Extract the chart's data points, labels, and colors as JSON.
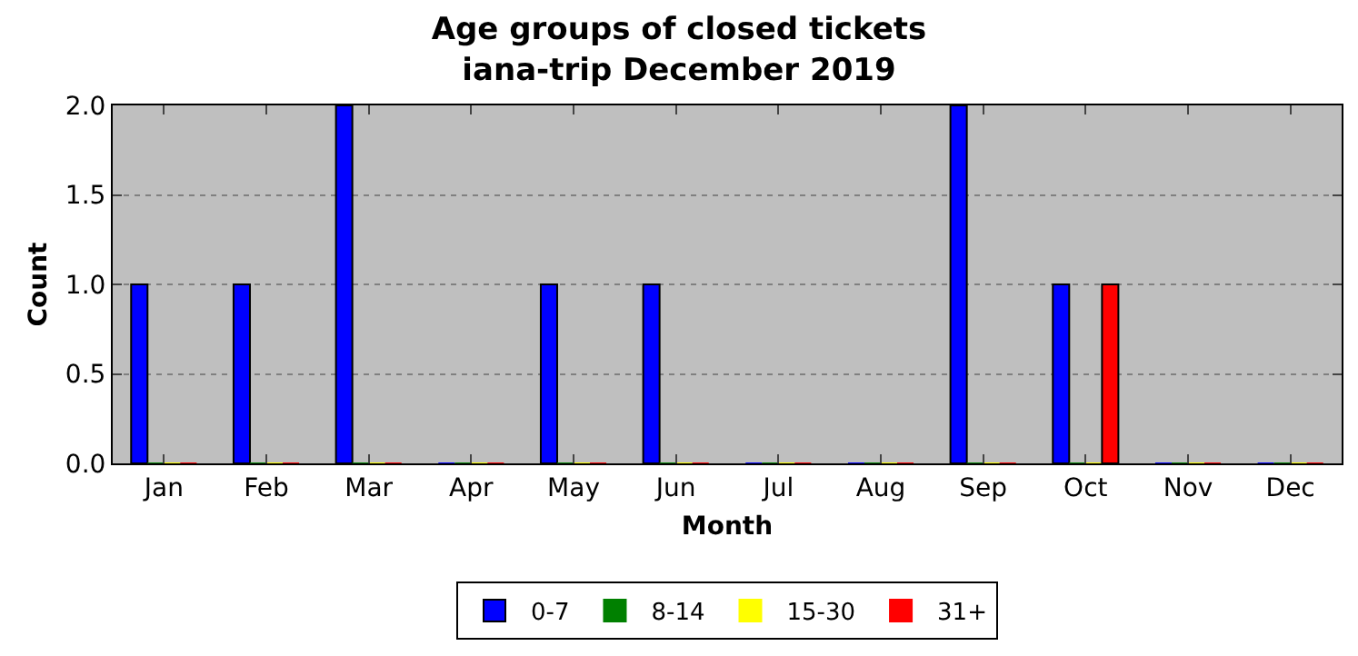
{
  "chart_data": {
    "type": "bar",
    "title": "Age groups of closed tickets\niana-trip December 2019",
    "xlabel": "Month",
    "ylabel": "Count",
    "categories": [
      "Jan",
      "Feb",
      "Mar",
      "Apr",
      "May",
      "Jun",
      "Jul",
      "Aug",
      "Sep",
      "Oct",
      "Nov",
      "Dec"
    ],
    "series": [
      {
        "name": "0-7",
        "color": "#0000ff",
        "values": [
          1,
          1,
          2,
          0,
          1,
          1,
          0,
          0,
          2,
          1,
          0,
          0
        ]
      },
      {
        "name": "8-14",
        "color": "#008000",
        "values": [
          0,
          0,
          0,
          0,
          0,
          0,
          0,
          0,
          0,
          0,
          0,
          0
        ]
      },
      {
        "name": "15-30",
        "color": "#ffff00",
        "values": [
          0,
          0,
          0,
          0,
          0,
          0,
          0,
          0,
          0,
          0,
          0,
          0
        ]
      },
      {
        "name": "31+",
        "color": "#ff0000",
        "values": [
          0,
          0,
          0,
          0,
          0,
          0,
          0,
          0,
          0,
          1,
          0,
          0
        ]
      }
    ],
    "ylim": [
      0,
      2.0
    ],
    "yticks": [
      {
        "value": 0,
        "label": "0.0"
      },
      {
        "value": 0.5,
        "label": "0.5"
      },
      {
        "value": 1,
        "label": "1.0"
      },
      {
        "value": 1.5,
        "label": "1.5"
      },
      {
        "value": 2,
        "label": "2.0"
      }
    ],
    "grid": "y",
    "legend": "bottom"
  }
}
